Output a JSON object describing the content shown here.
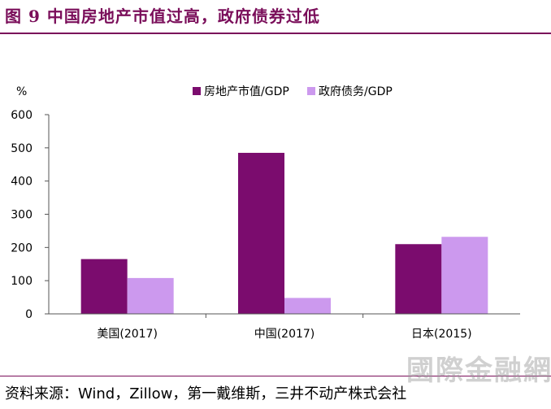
{
  "figure_title": "图 9 中国房地产市值过高，政府债券过低",
  "source_text": "资料来源：Wind，Zillow，第一戴维斯，三井不动产株式会社",
  "watermark_text": "國際金融網",
  "chart_data": {
    "type": "bar",
    "ylabel": "%",
    "ylim": [
      0,
      600
    ],
    "yticks": [
      0,
      100,
      200,
      300,
      400,
      500,
      600
    ],
    "categories": [
      "美国(2017)",
      "中国(2017)",
      "日本(2015)"
    ],
    "series": [
      {
        "name": "房地产市值/GDP",
        "color": "#7b0c6e",
        "values": [
          165,
          485,
          210
        ]
      },
      {
        "name": "政府债务/GDP",
        "color": "#cc99ee",
        "values": [
          108,
          48,
          232
        ]
      }
    ],
    "legend_position": "top",
    "grid": false
  }
}
